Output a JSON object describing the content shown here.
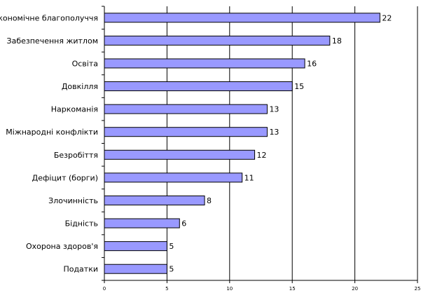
{
  "chart_data": {
    "type": "bar",
    "orientation": "horizontal",
    "title": "",
    "xlabel": "",
    "ylabel": "",
    "categories": [
      "Економічне благополуччя",
      "Забезпечення житлом",
      "Освіта",
      "Довкілля",
      "Наркоманія",
      "Міжнародні конфлікти",
      "Безробіття",
      "Дефіцит (борги)",
      "Злочинність",
      "Бідність",
      "Охорона здоров'я",
      "Податки"
    ],
    "values": [
      22,
      18,
      16,
      15,
      13,
      13,
      12,
      11,
      8,
      6,
      5,
      5
    ],
    "xlim": [
      0,
      25
    ],
    "xticks": [
      0,
      5,
      10,
      15,
      20,
      25
    ],
    "grid": "vertical major gridlines",
    "legend": "none",
    "data_labels": true,
    "bar_color": "#9999ff",
    "bar_edge_color": "#000000"
  }
}
